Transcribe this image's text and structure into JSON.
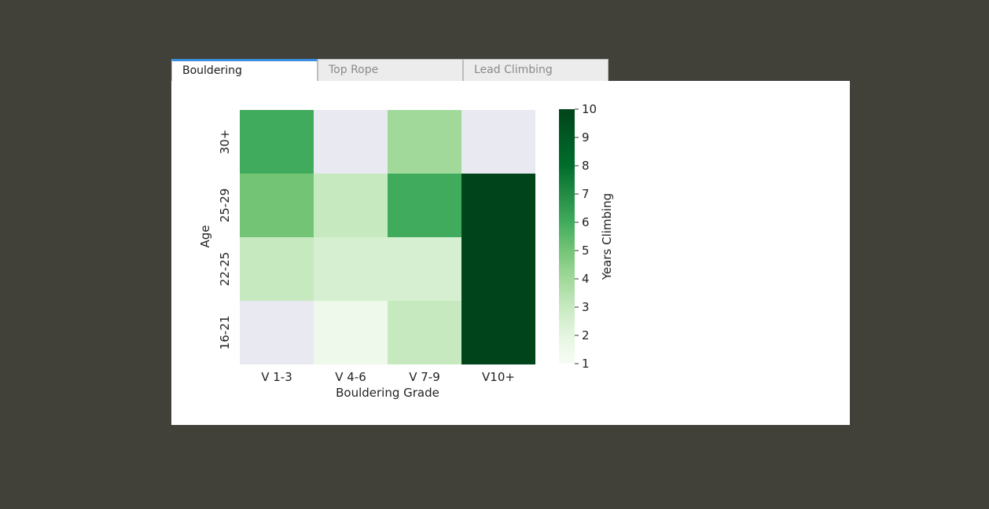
{
  "tabs": [
    {
      "label": "Bouldering",
      "active": true
    },
    {
      "label": "Top Rope",
      "active": false
    },
    {
      "label": "Lead Climbing",
      "active": false
    }
  ],
  "colors": {
    "background": "#41413a",
    "active_tab_accent": "#3b8fe0",
    "missing_cell": "#e9e9f1"
  },
  "chart_data": {
    "type": "heatmap",
    "title": "",
    "xlabel": "Bouldering Grade",
    "ylabel": "Age",
    "colorbar_label": "Years Climbing",
    "colormap": "Greens",
    "x_categories": [
      "V 1-3",
      "V 4-6",
      "V 7-9",
      "V10+"
    ],
    "y_categories": [
      "30+",
      "25-29",
      "22-25",
      "16-21"
    ],
    "values": [
      [
        6,
        null,
        4,
        null
      ],
      [
        5,
        3,
        6,
        10
      ],
      [
        3,
        2.5,
        2.5,
        10
      ],
      [
        null,
        1.5,
        3,
        10
      ]
    ],
    "vmin": 1,
    "vmax": 10,
    "colorbar_ticks": [
      1,
      2,
      3,
      4,
      5,
      6,
      7,
      8,
      9,
      10
    ]
  }
}
